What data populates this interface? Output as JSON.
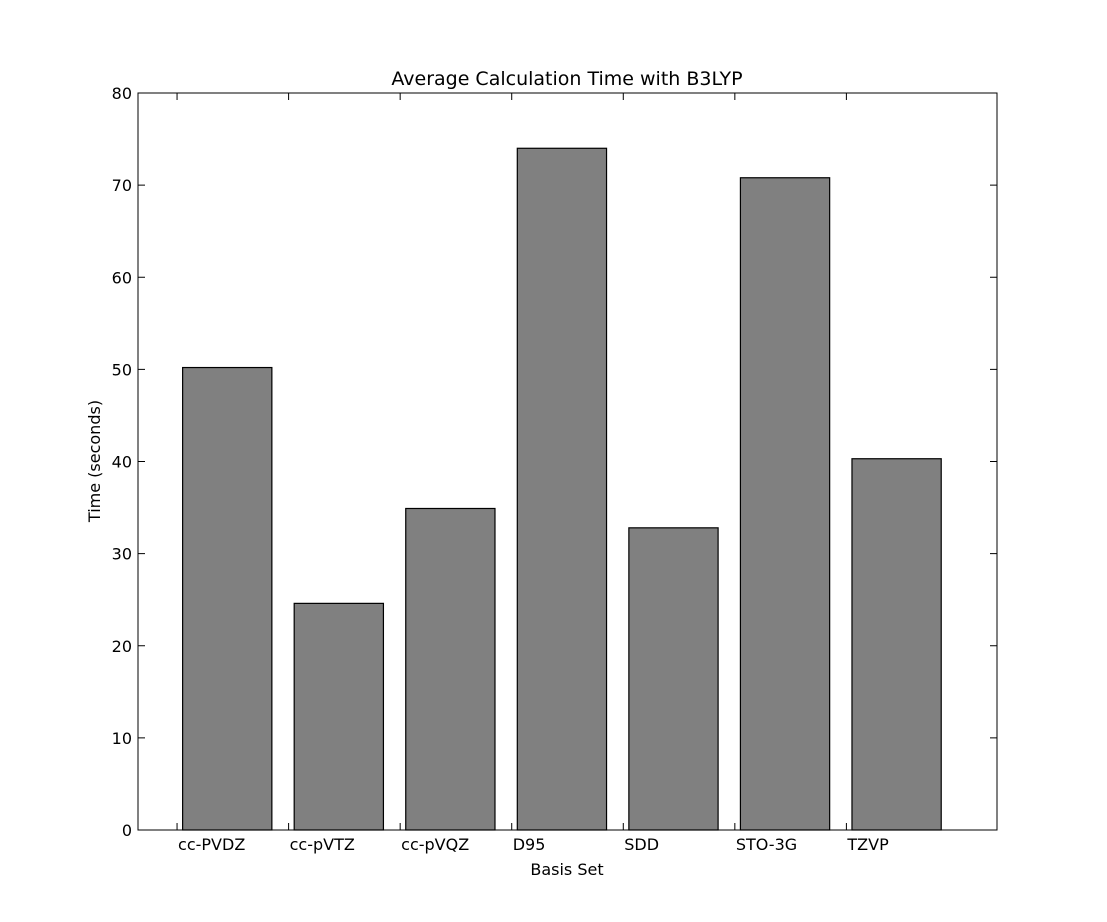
{
  "chart_data": {
    "type": "bar",
    "title": "Average Calculation Time with B3LYP",
    "xlabel": "Basis Set",
    "ylabel": "Time (seconds)",
    "categories": [
      "cc-PVDZ",
      "cc-pVTZ",
      "cc-pVQZ",
      "D95",
      "SDD",
      "STO-3G",
      "TZVP"
    ],
    "values": [
      50.2,
      24.6,
      34.9,
      74.0,
      32.8,
      70.8,
      40.3
    ],
    "ylim": [
      0,
      80
    ],
    "yticks": [
      0,
      10,
      20,
      30,
      40,
      50,
      60,
      70,
      80
    ],
    "xlim": [
      -0.35,
      7.35
    ],
    "bar_width": 0.8,
    "grid": false,
    "legend": "none",
    "colors": {
      "bar_fill": "#808080",
      "bar_edge": "#000000",
      "axes": "#000000",
      "background": "#ffffff"
    }
  }
}
